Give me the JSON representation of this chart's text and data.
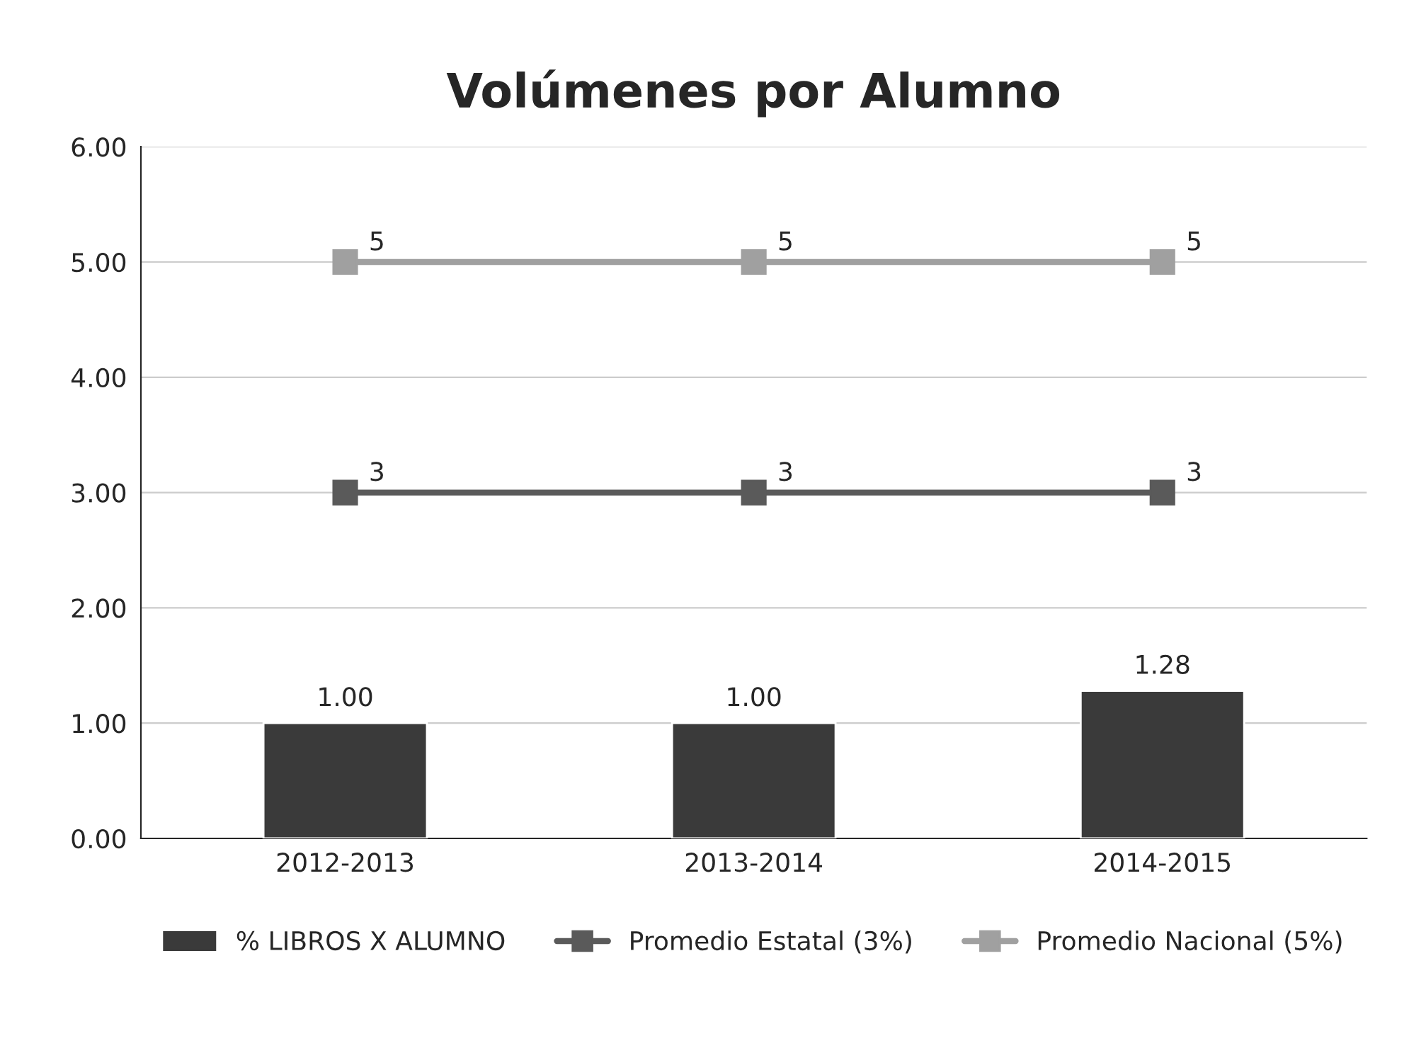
{
  "chart_data": {
    "type": "bar",
    "title": "Volúmenes por Alumno",
    "categories": [
      "2012-2013",
      "2013-2014",
      "2014-2015"
    ],
    "series": [
      {
        "name": "% LIBROS X ALUMNO",
        "color": "#3a3a3a",
        "values": [
          1.0,
          1.0,
          1.28
        ],
        "value_labels": [
          "1.00",
          "1.00",
          "1.28"
        ]
      },
      {
        "name": "Promedio Estatal (3%)",
        "type": "line",
        "color": "#5a5a5a",
        "values": [
          3,
          3,
          3
        ],
        "value_labels": [
          "3",
          "3",
          "3"
        ],
        "marker": "square"
      },
      {
        "name": "Promedio Nacional (5%)",
        "type": "line",
        "color": "#a0a0a0",
        "values": [
          5,
          5,
          5
        ],
        "value_labels": [
          "5",
          "5",
          "5"
        ],
        "marker": "square"
      }
    ],
    "ylim": [
      0,
      6
    ],
    "yticks": [
      {
        "value": 0,
        "label": "0.00"
      },
      {
        "value": 1,
        "label": "1.00"
      },
      {
        "value": 2,
        "label": "2.00"
      },
      {
        "value": 3,
        "label": "3.00"
      },
      {
        "value": 4,
        "label": "4.00"
      },
      {
        "value": 5,
        "label": "5.00"
      },
      {
        "value": 6,
        "label": "6.00"
      }
    ],
    "grid": "y",
    "legend": "bottom",
    "line_style": "solid"
  }
}
